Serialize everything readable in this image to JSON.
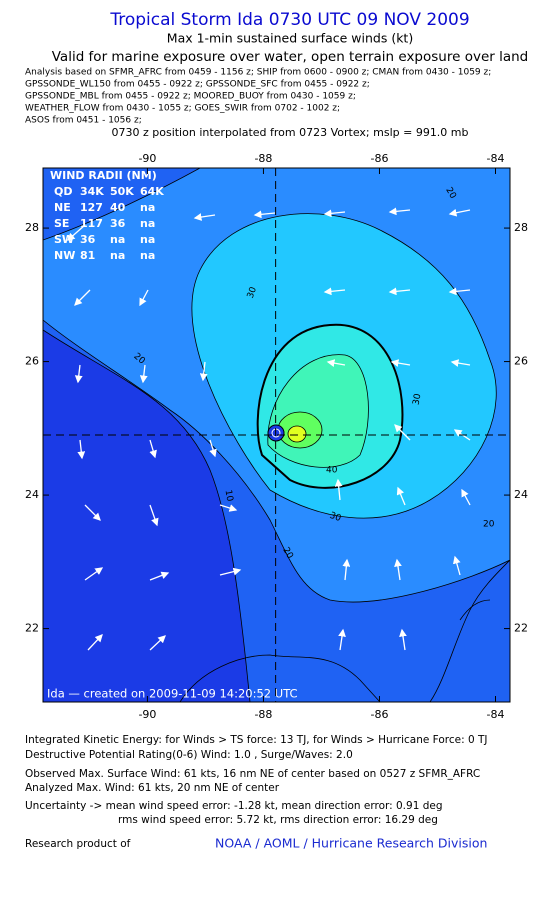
{
  "header": {
    "title": "Tropical Storm Ida 0730 UTC 09 NOV 2009",
    "subtitle": "Max 1-min sustained surface winds (kt)",
    "validity": "Valid for marine exposure over water, open terrain exposure over land",
    "analysis": [
      "Analysis based on  SFMR_AFRC from 0459 - 1156 z;  SHIP from 0600 - 0900 z;  CMAN from 0430 - 1059 z;",
      "GPSSONDE_WL150 from 0455 - 0922 z;  GPSSONDE_SFC from 0455 - 0922 z;",
      "GPSSONDE_MBL from 0455 - 0922 z;  MOORED_BUOY from 0430 - 1059 z;",
      "WEATHER_FLOW from 0430 - 1055 z;  GOES_SWIR from 0702 - 1002 z;",
      "ASOS from 0451 - 1056 z;"
    ],
    "position": "0730 z position interpolated from 0723 Vortex; mslp = 991.0 mb"
  },
  "map": {
    "xlim": [
      -91.8,
      -83.75
    ],
    "ylim": [
      20.9,
      28.9
    ],
    "xticks": [
      -90,
      -88,
      -86,
      -84
    ],
    "yticks": [
      22,
      24,
      26,
      28
    ],
    "center": {
      "lon": -87.79,
      "lat": 24.9
    },
    "wind_radii": {
      "title": "WIND RADII (NM)",
      "header": [
        "QD",
        "34K",
        "50K",
        "64K"
      ],
      "rows": [
        [
          "NE",
          127,
          40,
          "na"
        ],
        [
          "SE",
          117,
          36,
          "na"
        ],
        [
          "SW",
          36,
          "na",
          "na"
        ],
        [
          "NW",
          81,
          "na",
          "na"
        ]
      ]
    },
    "contour_labels": [
      20,
      30,
      20,
      30,
      40,
      30,
      10,
      20,
      20
    ],
    "credit": "Ida — created on 2009-11-09 14:20:52 UTC"
  },
  "footer": {
    "ike": "Integrated Kinetic Energy:  for Winds > TS force: 13 TJ,  for Winds > Hurricane Force: 0 TJ",
    "dpr": "Destructive Potential Rating(0-6)   Wind: 1.0 , Surge/Waves: 2.0",
    "observed": "Observed Max. Surface Wind: 61 kts, 16 nm NE of center based on 0527 z SFMR_AFRC",
    "analyzed": "Analyzed Max. Wind: 61 kts, 20 nm NE of center",
    "uncertainty1": "Uncertainty -> mean wind speed error:  -1.28 kt,   mean direction error: 0.91 deg",
    "uncertainty2": "rms wind speed error: 5.72 kt,   rms direction error: 16.29 deg",
    "research": "Research product of",
    "org": "NOAA / AOML / Hurricane Research Division"
  }
}
